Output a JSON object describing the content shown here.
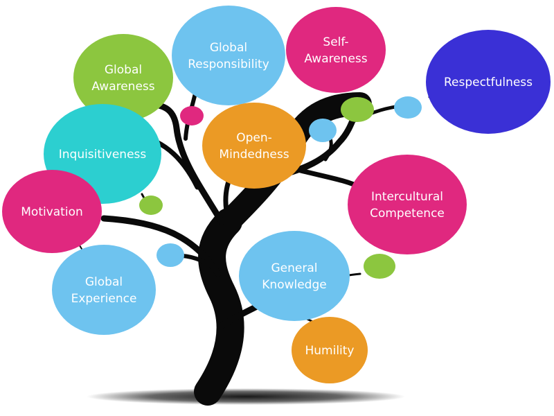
{
  "traits": [
    {
      "id": "global-responsibility",
      "lines": [
        "Global",
        "Responsibility"
      ],
      "color": "#6ec3ef"
    },
    {
      "id": "self-awareness",
      "lines": [
        "Self-",
        "Awareness"
      ],
      "color": "#e0287f"
    },
    {
      "id": "respectfulness",
      "lines": [
        "Respectfulness"
      ],
      "color": "#3a30d6"
    },
    {
      "id": "global-awareness",
      "lines": [
        "Global",
        "Awareness"
      ],
      "color": "#8cc63f"
    },
    {
      "id": "inquisitiveness",
      "lines": [
        "Inquisitiveness"
      ],
      "color": "#2ccfd0"
    },
    {
      "id": "open-mindedness",
      "lines": [
        "Open-",
        "Mindedness"
      ],
      "color": "#eb9a25"
    },
    {
      "id": "motivation",
      "lines": [
        "Motivation"
      ],
      "color": "#e0287f"
    },
    {
      "id": "intercultural-competence",
      "lines": [
        "Intercultural",
        "Competence"
      ],
      "color": "#e0287f"
    },
    {
      "id": "global-experience",
      "lines": [
        "Global",
        "Experience"
      ],
      "color": "#6ec3ef"
    },
    {
      "id": "general-knowledge",
      "lines": [
        "General",
        "Knowledge"
      ],
      "color": "#6ec3ef"
    },
    {
      "id": "humility",
      "lines": [
        "Humility"
      ],
      "color": "#eb9a25"
    }
  ],
  "colors": {
    "trunk": "#0a0a0a",
    "shadow": "#000000",
    "bud_blue": "#6ec3ef",
    "bud_green": "#8cc63f",
    "bud_pink": "#e0287f"
  }
}
